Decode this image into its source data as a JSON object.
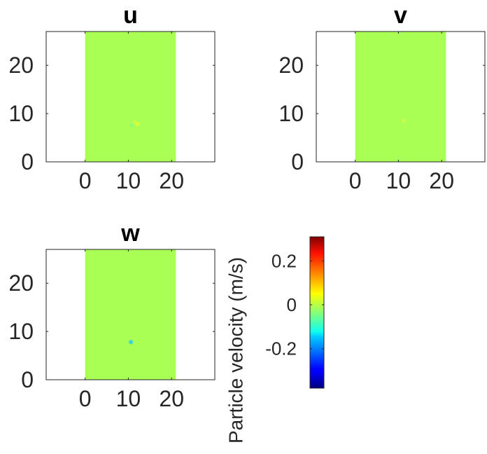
{
  "chart_data": [
    {
      "type": "heatmap",
      "title": "u",
      "x_ticks": [
        0,
        10,
        20
      ],
      "y_ticks": [
        0,
        10,
        20
      ],
      "xlim": [
        -9,
        30
      ],
      "ylim": [
        0,
        27
      ],
      "field_extent": {
        "x": [
          0,
          21
        ],
        "y": [
          0,
          27
        ]
      },
      "field_color": "#aaff55",
      "spots": [
        {
          "x": 11.5,
          "y": 8.2,
          "color": "#ccff44"
        },
        {
          "x": 10.8,
          "y": 7.6,
          "color": "#88ff77"
        },
        {
          "x": 12.2,
          "y": 7.8,
          "color": "#ddff33"
        }
      ]
    },
    {
      "type": "heatmap",
      "title": "v",
      "x_ticks": [
        0,
        10,
        20
      ],
      "y_ticks": [
        0,
        10,
        20
      ],
      "xlim": [
        -9,
        30
      ],
      "ylim": [
        0,
        27
      ],
      "field_extent": {
        "x": [
          0,
          21
        ],
        "y": [
          0,
          27
        ]
      },
      "field_color": "#aaff55",
      "spots": [
        {
          "x": 11.2,
          "y": 8.5,
          "color": "#ccff44"
        }
      ]
    },
    {
      "type": "heatmap",
      "title": "w",
      "x_ticks": [
        0,
        10,
        20
      ],
      "y_ticks": [
        0,
        10,
        20
      ],
      "xlim": [
        -9,
        30
      ],
      "ylim": [
        0,
        27
      ],
      "field_extent": {
        "x": [
          0,
          21
        ],
        "y": [
          0,
          27
        ]
      },
      "field_color": "#aaff55",
      "spots": [
        {
          "x": 10.6,
          "y": 7.8,
          "color": "#22ccff"
        }
      ]
    }
  ],
  "colorbar": {
    "label": "Particle velocity (m/s)",
    "range": [
      -0.38,
      0.31
    ],
    "ticks": [
      {
        "value": 0.2,
        "label": "0.2"
      },
      {
        "value": 0,
        "label": "0"
      },
      {
        "value": -0.2,
        "label": "-0.2"
      }
    ],
    "colormap": "jet"
  }
}
